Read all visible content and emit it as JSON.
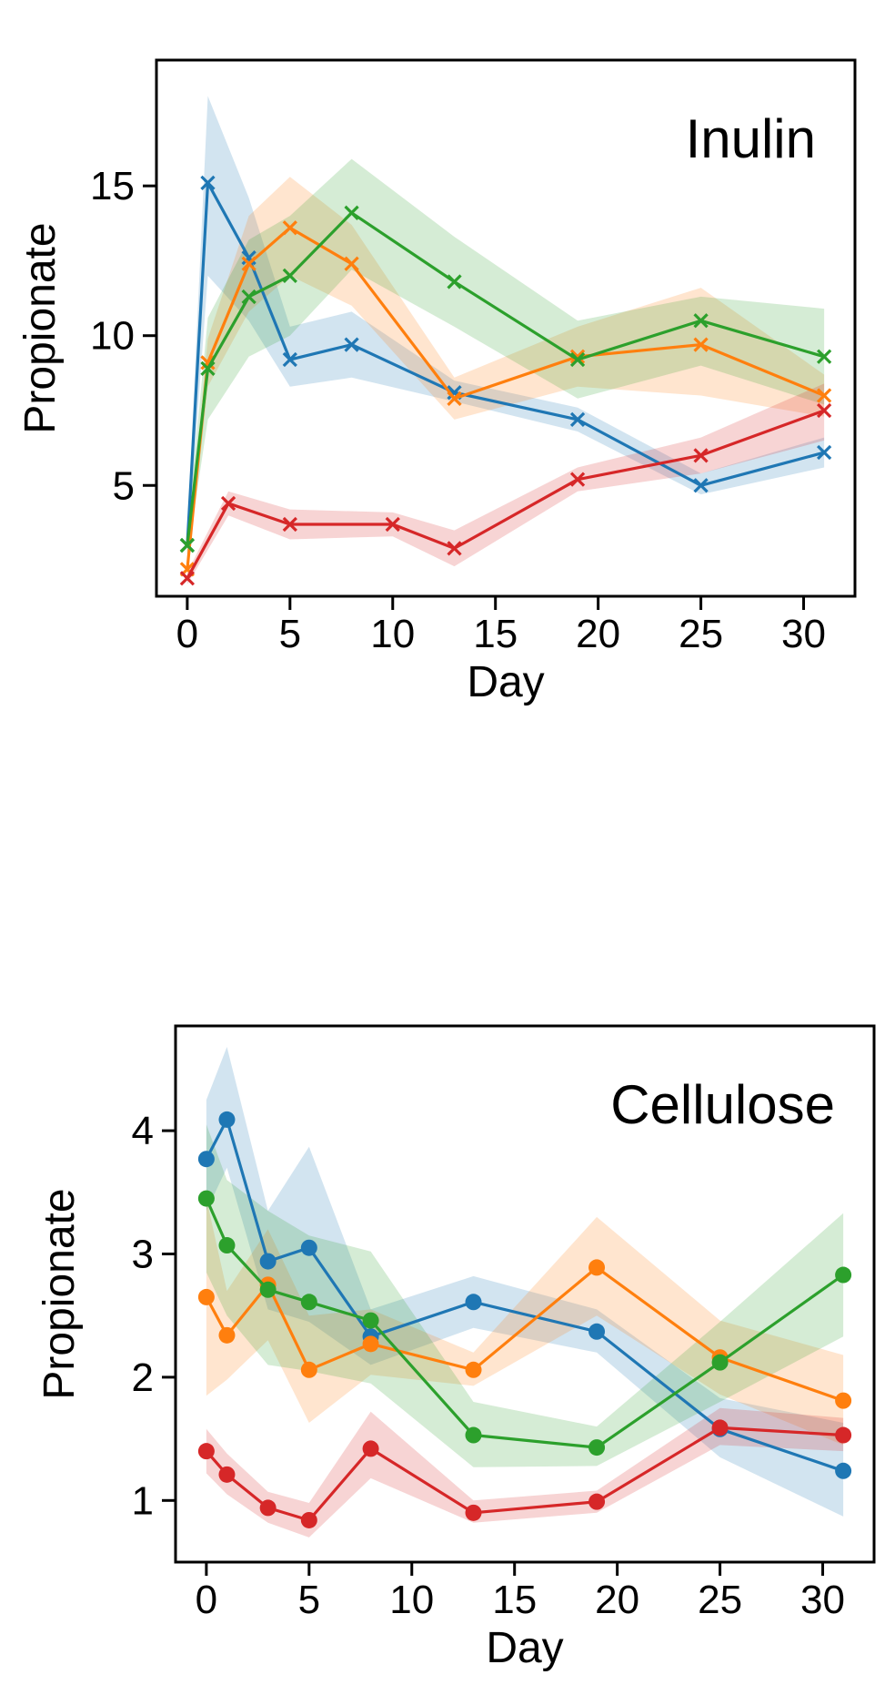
{
  "colors": {
    "blue": "#1f77b4",
    "orange": "#ff7f0e",
    "green": "#2ca02c",
    "red": "#d62728"
  },
  "chart_data": [
    {
      "type": "line",
      "title": "Inulin",
      "xlabel": "Day",
      "ylabel": "Propionate",
      "xlim": [
        -1.5,
        32.5
      ],
      "ylim": [
        1.3,
        19.2
      ],
      "xticks": [
        0,
        5,
        10,
        15,
        20,
        25,
        30
      ],
      "yticks": [
        5,
        10,
        15
      ],
      "marker": "x",
      "grid": false,
      "series": [
        {
          "name": "blue",
          "color": "#1f77b4",
          "x": [
            0,
            1,
            3,
            5,
            8,
            13,
            19,
            25,
            31
          ],
          "y": [
            3.0,
            15.1,
            12.6,
            9.2,
            9.7,
            8.1,
            7.2,
            5.0,
            6.1
          ],
          "lower": [
            2.7,
            12.0,
            10.5,
            8.3,
            8.6,
            7.8,
            6.8,
            4.7,
            5.6
          ],
          "upper": [
            3.4,
            18.0,
            14.6,
            10.3,
            10.8,
            8.5,
            7.6,
            5.4,
            6.6
          ]
        },
        {
          "name": "orange",
          "color": "#ff7f0e",
          "x": [
            0,
            1,
            3,
            5,
            8,
            13,
            19,
            25,
            31
          ],
          "y": [
            2.2,
            9.1,
            12.4,
            13.6,
            12.4,
            7.9,
            9.3,
            9.7,
            8.0
          ],
          "lower": [
            1.9,
            8.3,
            10.8,
            12.0,
            11.0,
            7.2,
            8.3,
            8.0,
            7.3
          ],
          "upper": [
            2.6,
            9.9,
            14.0,
            15.3,
            13.7,
            8.6,
            10.3,
            11.6,
            8.7
          ]
        },
        {
          "name": "green",
          "color": "#2ca02c",
          "x": [
            0,
            1,
            3,
            5,
            8,
            13,
            19,
            25,
            31
          ],
          "y": [
            3.0,
            8.9,
            11.3,
            12.0,
            14.1,
            11.8,
            9.2,
            10.5,
            9.3
          ],
          "lower": [
            2.6,
            7.2,
            9.3,
            10.0,
            12.2,
            10.3,
            7.9,
            9.0,
            7.7
          ],
          "upper": [
            3.4,
            10.6,
            13.2,
            14.0,
            15.9,
            13.3,
            10.5,
            11.3,
            10.9
          ]
        },
        {
          "name": "red",
          "color": "#d62728",
          "x": [
            0,
            2,
            5,
            10,
            13,
            19,
            25,
            31
          ],
          "y": [
            1.9,
            4.4,
            3.7,
            3.7,
            2.9,
            5.2,
            6.0,
            7.5
          ],
          "lower": [
            1.7,
            4.0,
            3.2,
            3.3,
            2.3,
            4.8,
            5.4,
            6.5
          ],
          "upper": [
            2.1,
            4.8,
            4.2,
            4.1,
            3.5,
            5.6,
            6.6,
            8.4
          ]
        }
      ]
    },
    {
      "type": "line",
      "title": "Cellulose",
      "xlabel": "Day",
      "ylabel": "Propionate",
      "xlim": [
        -1.5,
        32.5
      ],
      "ylim": [
        0.5,
        4.85
      ],
      "xticks": [
        0,
        5,
        10,
        15,
        20,
        25,
        30
      ],
      "yticks": [
        1,
        2,
        3,
        4
      ],
      "marker": "o",
      "grid": false,
      "series": [
        {
          "name": "blue",
          "color": "#1f77b4",
          "x": [
            0,
            1,
            3,
            5,
            8,
            13,
            19,
            25,
            31
          ],
          "y": [
            3.77,
            4.09,
            2.94,
            3.05,
            2.33,
            2.61,
            2.37,
            1.58,
            1.24
          ],
          "lower": [
            3.35,
            3.7,
            2.55,
            2.45,
            2.1,
            2.4,
            2.2,
            1.35,
            0.87
          ],
          "upper": [
            4.25,
            4.68,
            3.35,
            3.87,
            2.55,
            2.82,
            2.55,
            1.83,
            1.63
          ]
        },
        {
          "name": "orange",
          "color": "#ff7f0e",
          "x": [
            0,
            1,
            3,
            5,
            8,
            13,
            19,
            25,
            31
          ],
          "y": [
            2.65,
            2.34,
            2.75,
            2.06,
            2.27,
            2.06,
            2.89,
            2.16,
            1.81
          ],
          "lower": [
            1.85,
            1.98,
            2.3,
            1.63,
            2.02,
            1.93,
            2.5,
            1.86,
            1.45
          ],
          "upper": [
            3.45,
            2.7,
            3.2,
            2.5,
            2.55,
            2.2,
            3.3,
            2.46,
            2.18
          ]
        },
        {
          "name": "green",
          "color": "#2ca02c",
          "x": [
            0,
            1,
            3,
            5,
            8,
            13,
            19,
            25,
            31
          ],
          "y": [
            3.45,
            3.07,
            2.71,
            2.61,
            2.46,
            1.53,
            1.43,
            2.12,
            2.83
          ],
          "lower": [
            2.85,
            2.5,
            2.1,
            2.05,
            1.95,
            1.27,
            1.28,
            1.8,
            2.33
          ],
          "upper": [
            4.05,
            3.6,
            3.35,
            3.15,
            3.02,
            1.8,
            1.6,
            2.45,
            3.33
          ]
        },
        {
          "name": "red",
          "color": "#d62728",
          "x": [
            0,
            1,
            3,
            5,
            8,
            13,
            19,
            25,
            31
          ],
          "y": [
            1.4,
            1.21,
            0.94,
            0.84,
            1.42,
            0.9,
            0.99,
            1.59,
            1.53
          ],
          "lower": [
            1.22,
            1.05,
            0.82,
            0.7,
            1.18,
            0.82,
            0.9,
            1.45,
            1.4
          ],
          "upper": [
            1.58,
            1.38,
            1.07,
            0.98,
            1.72,
            1.0,
            1.08,
            1.75,
            1.67
          ]
        }
      ]
    }
  ]
}
